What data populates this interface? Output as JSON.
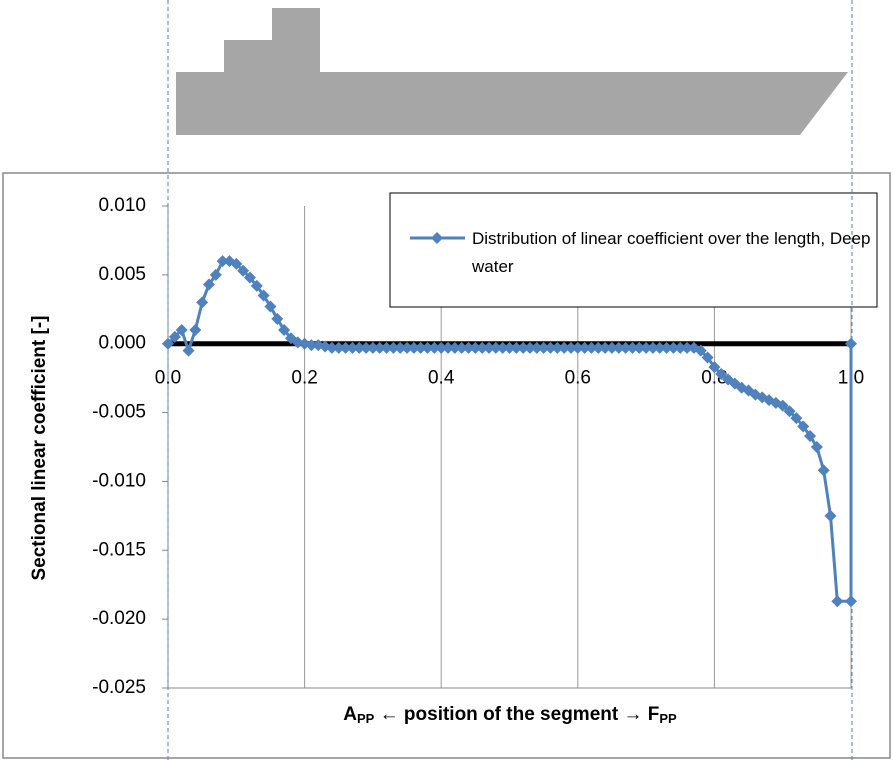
{
  "chart_data": {
    "type": "line",
    "y_label": "Sectional linear coefficient [-]",
    "x_label": [
      "A",
      "PP",
      " ← position of the segment → F",
      "PP"
    ],
    "xlim": [
      0,
      1
    ],
    "xticks": [
      {
        "value": 0,
        "label": "0.0"
      },
      0.2,
      0.4,
      0.6,
      0.8,
      {
        "value": 1,
        "label": "1.0"
      }
    ],
    "ylim": [
      -0.025,
      0.01
    ],
    "yticks": [
      {
        "value": 0.01,
        "label": "0.010"
      },
      {
        "value": 0.005,
        "label": "0.005"
      },
      {
        "value": 0,
        "label": "0.000"
      },
      {
        "value": -0.005,
        "label": "-0.005"
      },
      {
        "value": -0.01,
        "label": "-0.010"
      },
      {
        "value": -0.015,
        "label": "-0.015"
      },
      {
        "value": -0.02,
        "label": "-0.020"
      },
      {
        "value": -0.025,
        "label": "-0.025"
      }
    ],
    "grid": true,
    "legend": "top-right",
    "x": [
      0,
      0.01,
      0.02,
      0.03,
      0.04,
      0.05,
      0.06,
      0.07,
      0.08,
      0.09,
      0.1,
      0.11,
      0.12,
      0.13,
      0.14,
      0.15,
      0.16,
      0.17,
      0.18,
      0.19,
      0.2,
      0.21,
      0.22,
      0.23,
      0.24,
      0.25,
      0.26,
      0.27,
      0.28,
      0.29,
      0.3,
      0.31,
      0.32,
      0.33,
      0.34,
      0.35,
      0.36,
      0.37,
      0.38,
      0.39,
      0.4,
      0.41,
      0.42,
      0.43,
      0.44,
      0.45,
      0.46,
      0.47,
      0.48,
      0.49,
      0.5,
      0.51,
      0.52,
      0.53,
      0.54,
      0.55,
      0.56,
      0.57,
      0.58,
      0.59,
      0.6,
      0.61,
      0.62,
      0.63,
      0.64,
      0.65,
      0.66,
      0.67,
      0.68,
      0.69,
      0.7,
      0.71,
      0.72,
      0.73,
      0.74,
      0.75,
      0.76,
      0.77,
      0.78,
      0.79,
      0.8,
      0.81,
      0.82,
      0.83,
      0.84,
      0.85,
      0.86,
      0.87,
      0.88,
      0.89,
      0.9,
      0.91,
      0.92,
      0.93,
      0.94,
      0.95,
      0.96,
      0.97,
      0.98,
      1,
      1
    ],
    "series": [
      {
        "name": "Distribution of linear coefficient over the length, Deep water",
        "color": "#4f81bd",
        "values": [
          0,
          0.0005,
          0.001,
          -0.0005,
          0.001,
          0.003,
          0.0043,
          0.005,
          0.006,
          0.006,
          0.0058,
          0.0053,
          0.0048,
          0.0042,
          0.0035,
          0.0027,
          0.0018,
          0.001,
          0.0004,
          0.0001,
          0,
          -0.0001,
          -0.0001,
          -0.0002,
          -0.0003,
          -0.0003,
          -0.0003,
          -0.0003,
          -0.0003,
          -0.0003,
          -0.0003,
          -0.0003,
          -0.0003,
          -0.0003,
          -0.0003,
          -0.0003,
          -0.0003,
          -0.0003,
          -0.0003,
          -0.0003,
          -0.0003,
          -0.0003,
          -0.0003,
          -0.0003,
          -0.0003,
          -0.0003,
          -0.0003,
          -0.0003,
          -0.0003,
          -0.0003,
          -0.0003,
          -0.0003,
          -0.0003,
          -0.0003,
          -0.0003,
          -0.0003,
          -0.0003,
          -0.0003,
          -0.0003,
          -0.0003,
          -0.0003,
          -0.0003,
          -0.0003,
          -0.0003,
          -0.0003,
          -0.0003,
          -0.0003,
          -0.0003,
          -0.0003,
          -0.0003,
          -0.0003,
          -0.0003,
          -0.0003,
          -0.0003,
          -0.0003,
          -0.0003,
          -0.0003,
          -0.0003,
          -0.0005,
          -0.001,
          -0.0017,
          -0.0022,
          -0.0026,
          -0.0029,
          -0.0032,
          -0.0034,
          -0.0037,
          -0.0039,
          -0.0041,
          -0.0043,
          -0.0045,
          -0.0049,
          -0.0054,
          -0.006,
          -0.0067,
          -0.0075,
          -0.0092,
          -0.0125,
          -0.0187,
          -0.0187,
          0
        ]
      }
    ]
  }
}
